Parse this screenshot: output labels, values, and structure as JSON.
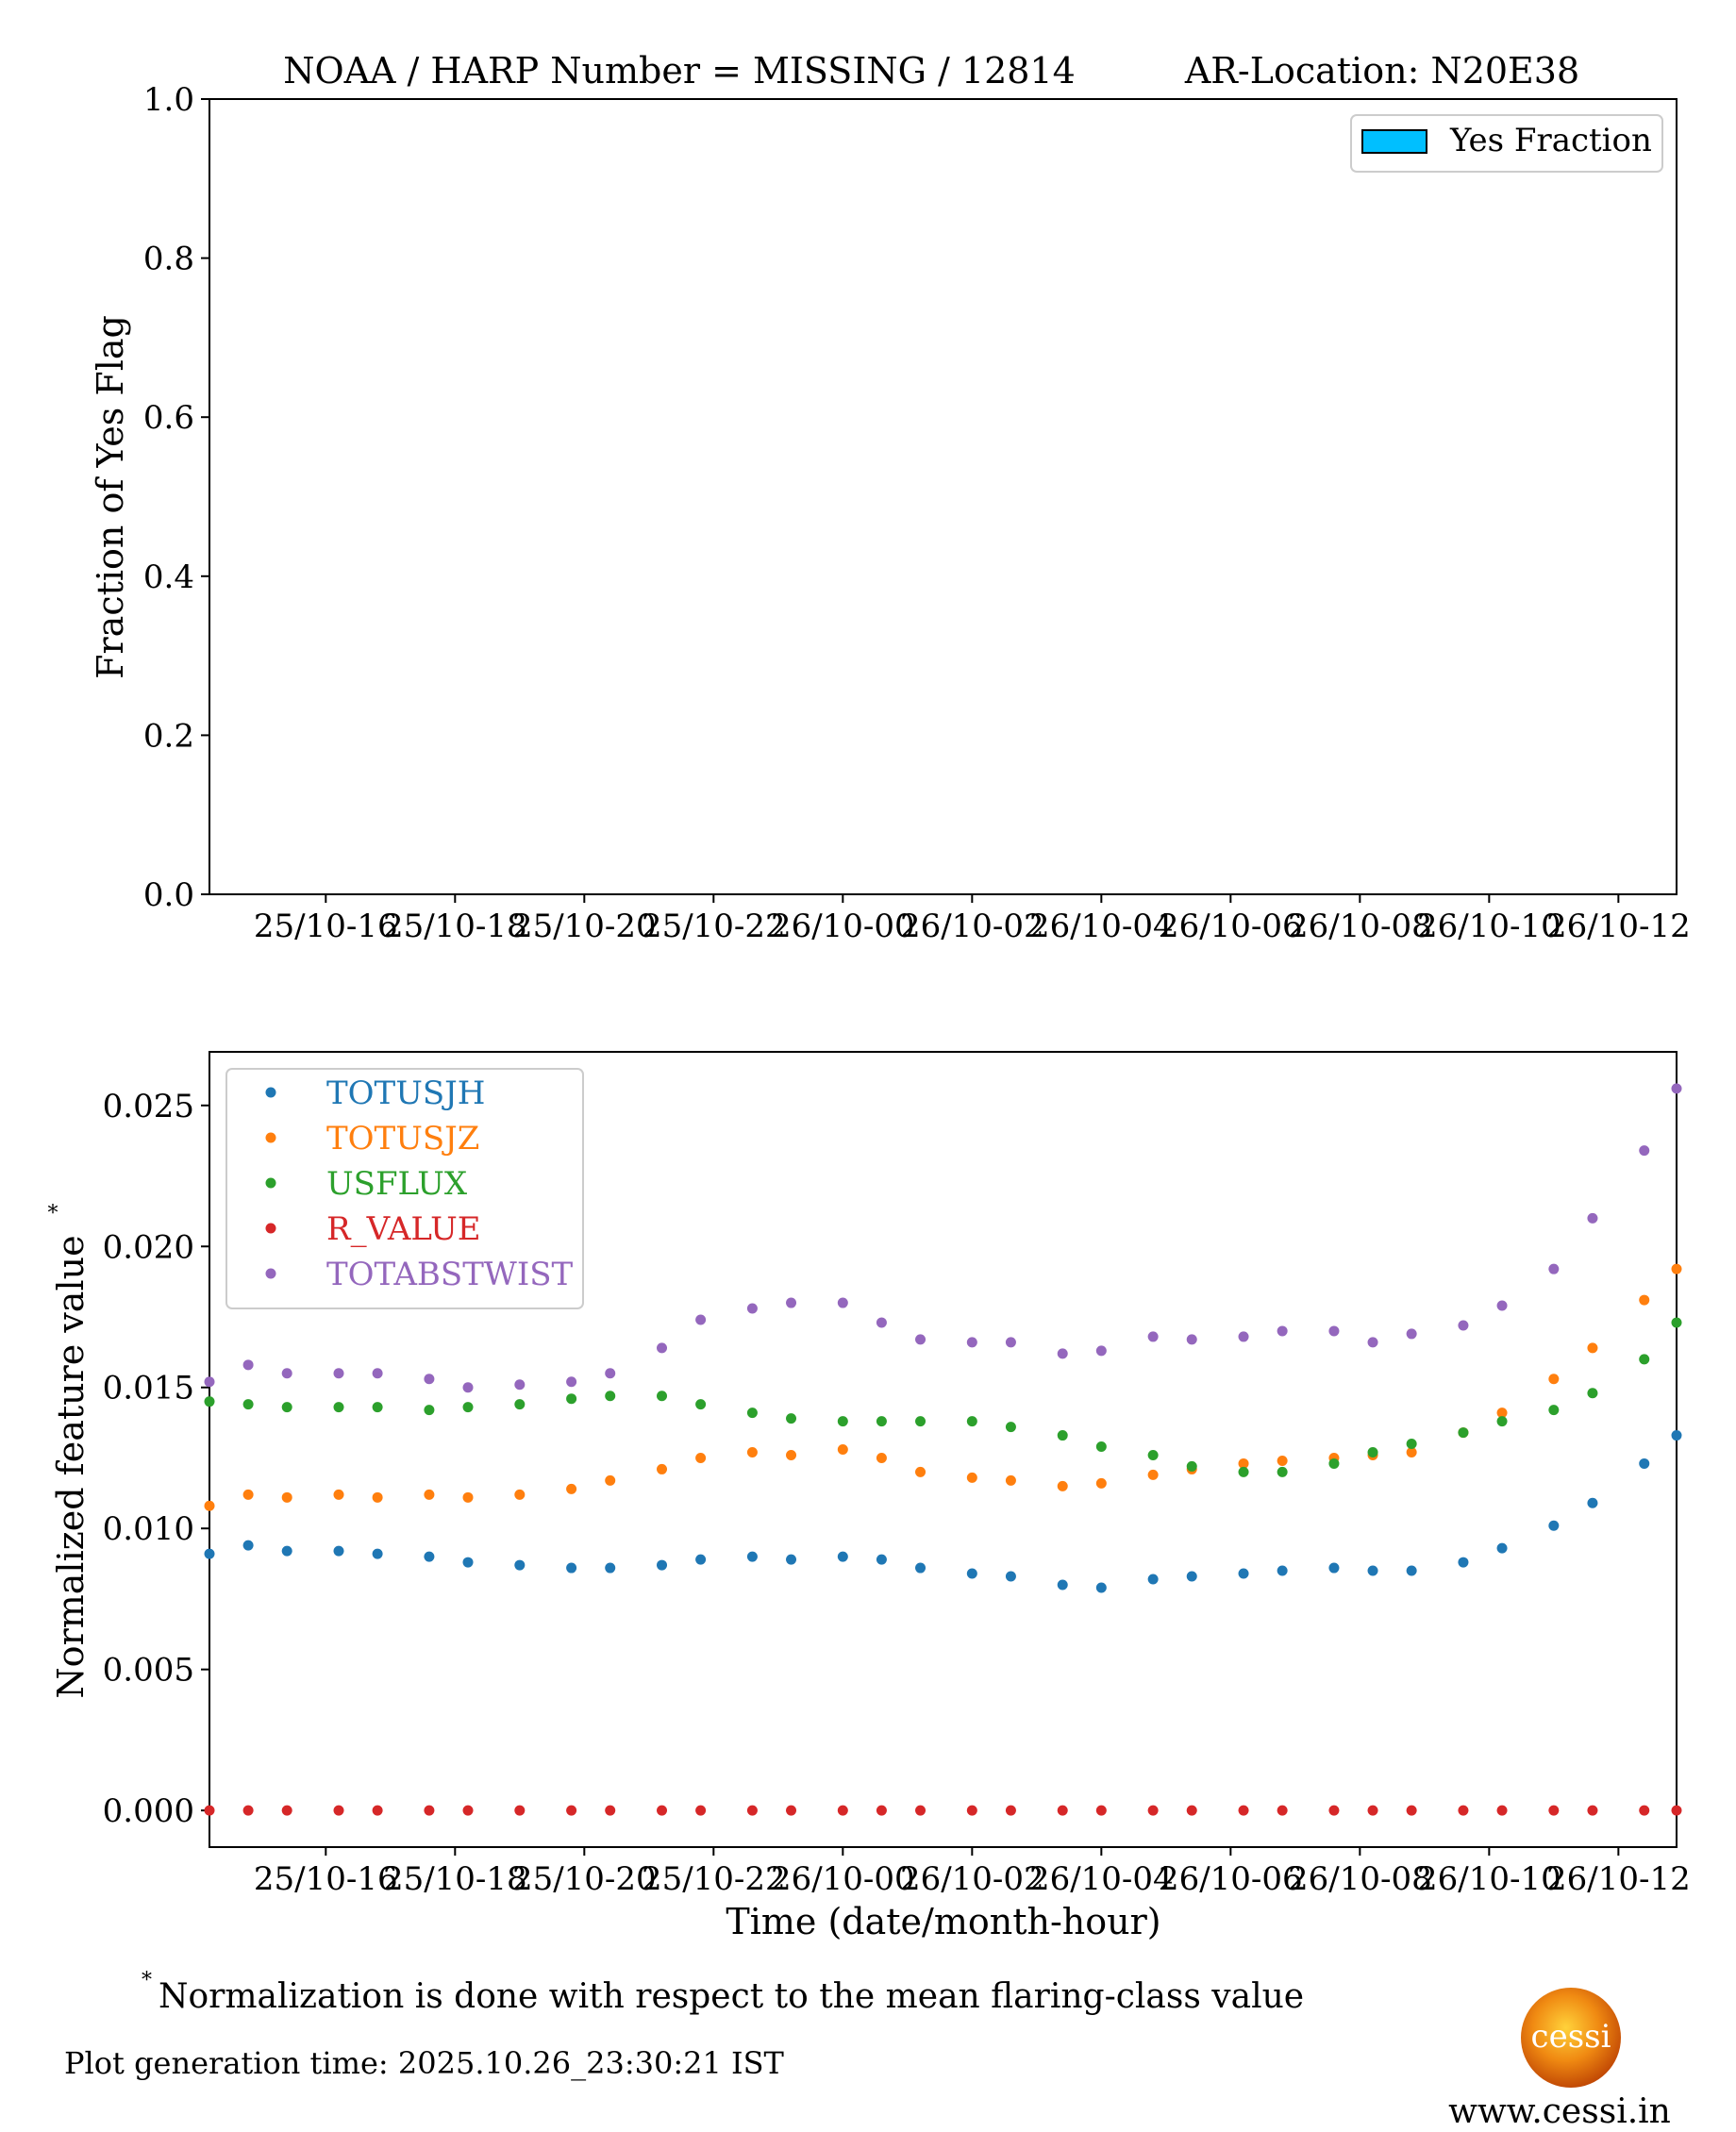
{
  "top_title": {
    "main": "NOAA / HARP Number = MISSING / 12814",
    "location": "AR-Location: N20E38"
  },
  "x_ticks": [
    "25/10-16",
    "25/10-18",
    "25/10-20",
    "25/10-22",
    "26/10-00",
    "26/10-02",
    "26/10-04",
    "26/10-06",
    "26/10-08",
    "26/10-10",
    "26/10-12"
  ],
  "chart_data": [
    {
      "type": "bar",
      "title": "NOAA / HARP Number = MISSING / 12814      AR-Location: N20E38",
      "ylabel": "Fraction of Yes Flag",
      "xlabel": "",
      "x_range_hours": [
        14.2,
        36.9
      ],
      "ylim": [
        0.0,
        1.0
      ],
      "y_ticks": [
        "0.0",
        "0.2",
        "0.4",
        "0.6",
        "0.8",
        "1.0"
      ],
      "legend": [
        "Yes Fraction"
      ],
      "legend_color": "#00BFFF",
      "values": []
    },
    {
      "type": "scatter",
      "ylabel": "Normalized feature value",
      "ylabel_super": "*",
      "xlabel": "Time (date/month-hour)",
      "x_range_hours": [
        14.2,
        36.9
      ],
      "ylim": [
        -0.0013,
        0.0269
      ],
      "y_ticks": [
        "0.000",
        "0.005",
        "0.010",
        "0.015",
        "0.020",
        "0.025"
      ],
      "x_hours": [
        14.2,
        14.8,
        15.4,
        16.2,
        16.8,
        17.6,
        18.2,
        19.0,
        19.8,
        20.4,
        21.2,
        21.8,
        22.6,
        23.2,
        24.0,
        24.6,
        25.2,
        26.0,
        26.6,
        27.4,
        28.0,
        28.8,
        29.4,
        30.2,
        30.8,
        31.6,
        32.2,
        32.8,
        33.6,
        34.2,
        35.0,
        35.6,
        36.4,
        36.9
      ],
      "series": [
        {
          "name": "TOTUSJH",
          "color": "#1f77b4",
          "values": [
            0.0091,
            0.0094,
            0.0092,
            0.0092,
            0.0091,
            0.009,
            0.0088,
            0.0087,
            0.0086,
            0.0086,
            0.0087,
            0.0089,
            0.009,
            0.0089,
            0.009,
            0.0089,
            0.0086,
            0.0084,
            0.0083,
            0.008,
            0.0079,
            0.0082,
            0.0083,
            0.0084,
            0.0085,
            0.0086,
            0.0085,
            0.0085,
            0.0088,
            0.0093,
            0.0101,
            0.0109,
            0.0123,
            0.0133
          ]
        },
        {
          "name": "TOTUSJZ",
          "color": "#ff7f0e",
          "values": [
            0.0108,
            0.0112,
            0.0111,
            0.0112,
            0.0111,
            0.0112,
            0.0111,
            0.0112,
            0.0114,
            0.0117,
            0.0121,
            0.0125,
            0.0127,
            0.0126,
            0.0128,
            0.0125,
            0.012,
            0.0118,
            0.0117,
            0.0115,
            0.0116,
            0.0119,
            0.0121,
            0.0123,
            0.0124,
            0.0125,
            0.0126,
            0.0127,
            0.0134,
            0.0141,
            0.0153,
            0.0164,
            0.0181,
            0.0192
          ]
        },
        {
          "name": "USFLUX",
          "color": "#2ca02c",
          "values": [
            0.0145,
            0.0144,
            0.0143,
            0.0143,
            0.0143,
            0.0142,
            0.0143,
            0.0144,
            0.0146,
            0.0147,
            0.0147,
            0.0144,
            0.0141,
            0.0139,
            0.0138,
            0.0138,
            0.0138,
            0.0138,
            0.0136,
            0.0133,
            0.0129,
            0.0126,
            0.0122,
            0.012,
            0.012,
            0.0123,
            0.0127,
            0.013,
            0.0134,
            0.0138,
            0.0142,
            0.0148,
            0.016,
            0.0173
          ]
        },
        {
          "name": "R_VALUE",
          "color": "#d62728",
          "values": [
            0,
            0,
            0,
            0,
            0,
            0,
            0,
            0,
            0,
            0,
            0,
            0,
            0,
            0,
            0,
            0,
            0,
            0,
            0,
            0,
            0,
            0,
            0,
            0,
            0,
            0,
            0,
            0,
            0,
            0,
            0,
            0,
            0,
            0
          ]
        },
        {
          "name": "TOTABSTWIST",
          "color": "#9467bd",
          "values": [
            0.0152,
            0.0158,
            0.0155,
            0.0155,
            0.0155,
            0.0153,
            0.015,
            0.0151,
            0.0152,
            0.0155,
            0.0164,
            0.0174,
            0.0178,
            0.018,
            0.018,
            0.0173,
            0.0167,
            0.0166,
            0.0166,
            0.0162,
            0.0163,
            0.0168,
            0.0167,
            0.0168,
            0.017,
            0.017,
            0.0166,
            0.0169,
            0.0172,
            0.0179,
            0.0192,
            0.021,
            0.0234,
            0.0256
          ]
        }
      ]
    }
  ],
  "footnote": {
    "marker": "*",
    "text": "Normalization is done with respect to the mean flaring-class value"
  },
  "generation_time": "Plot generation time: 2025.10.26_23:30:21 IST",
  "logo": {
    "text": "cessi",
    "url": "www.cessi.in"
  }
}
